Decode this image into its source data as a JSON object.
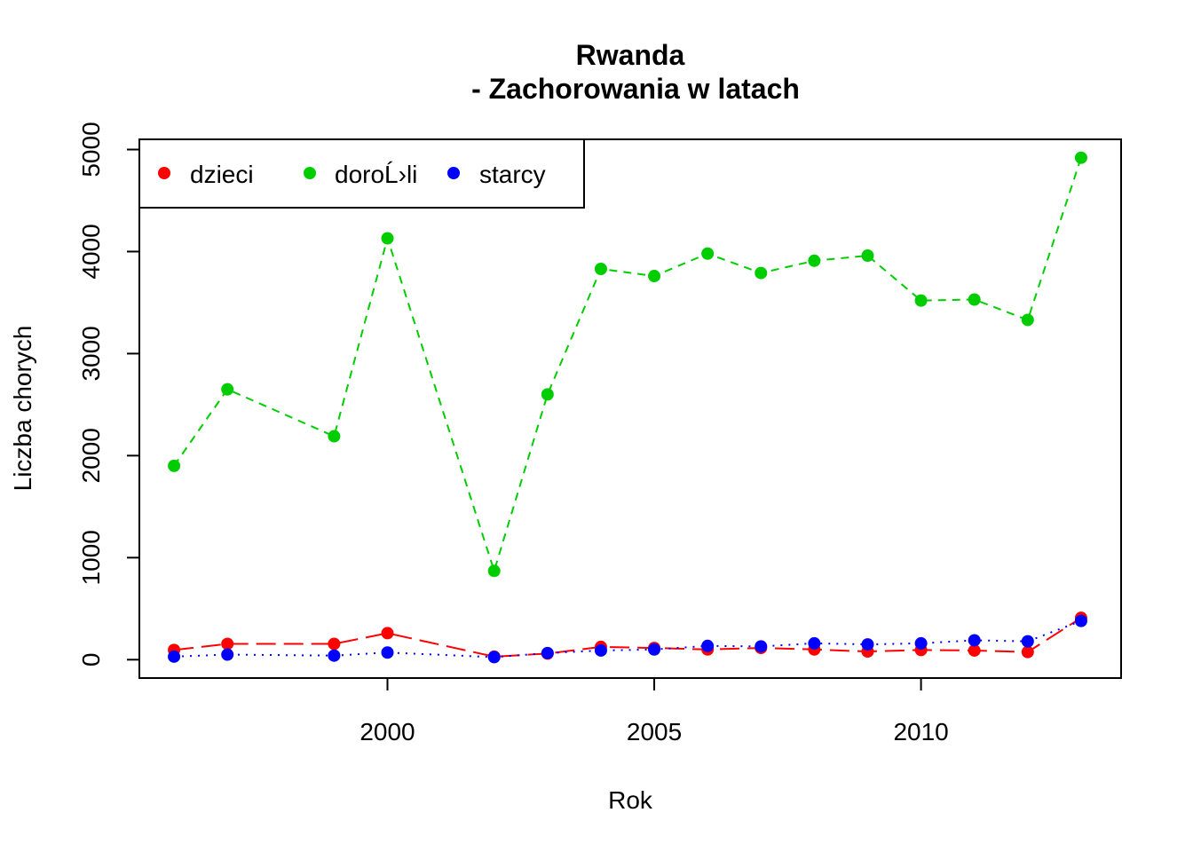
{
  "chart_data": {
    "type": "line",
    "title_line1": "Rwanda",
    "title_line2": "- Zachorowania w latach",
    "xlabel": "Rok",
    "ylabel": "Liczba chorych",
    "xlim": [
      1995.35,
      2013.75
    ],
    "ylim": [
      -180,
      5100
    ],
    "x_ticks": [
      2000,
      2005,
      2010
    ],
    "y_ticks": [
      0,
      1000,
      2000,
      3000,
      4000,
      5000
    ],
    "legend_position": "top-left",
    "x": [
      1996,
      1997,
      1999,
      2000,
      2002,
      2003,
      2004,
      2005,
      2006,
      2007,
      2008,
      2009,
      2010,
      2011,
      2012,
      2013
    ],
    "series": [
      {
        "name": "dzieci",
        "color": "#ff0000",
        "line_style": "long-dash",
        "values": [
          95,
          155,
          155,
          260,
          30,
          60,
          125,
          115,
          100,
          115,
          100,
          80,
          95,
          90,
          75,
          410
        ]
      },
      {
        "name": "doroĹ›li",
        "color": "#00cd00",
        "line_style": "dashed",
        "values": [
          1900,
          2650,
          2190,
          4130,
          870,
          2600,
          3830,
          3760,
          3980,
          3790,
          3910,
          3960,
          3520,
          3530,
          3330,
          4920
        ]
      },
      {
        "name": "starcy",
        "color": "#0000ff",
        "line_style": "dotted",
        "values": [
          30,
          50,
          40,
          70,
          25,
          65,
          90,
          100,
          135,
          130,
          160,
          150,
          160,
          190,
          180,
          380
        ]
      }
    ]
  }
}
